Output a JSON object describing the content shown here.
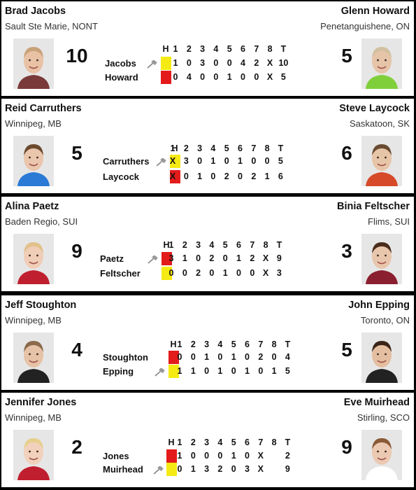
{
  "header_labels": [
    "H",
    "1",
    "2",
    "3",
    "4",
    "5",
    "6",
    "7",
    "8",
    "T"
  ],
  "colors": {
    "yellow": "#f5ea14",
    "red": "#e31b1b"
  },
  "games": [
    {
      "player1": {
        "name": "Brad Jacobs",
        "location": "Sault Ste Marie, NONT",
        "score": "10",
        "short": "Jacobs",
        "stone": "yellow",
        "hammer": true,
        "ends": [
          "1",
          "0",
          "3",
          "0",
          "0",
          "4",
          "2",
          "X"
        ],
        "total": "10"
      },
      "player2": {
        "name": "Glenn Howard",
        "location": "Penetanguishene, ON",
        "score": "5",
        "short": "Howard",
        "stone": "red",
        "hammer": false,
        "ends": [
          "0",
          "4",
          "0",
          "0",
          "1",
          "0",
          "0",
          "X"
        ],
        "total": "5"
      }
    },
    {
      "player1": {
        "name": "Reid Carruthers",
        "location": "Winnipeg, MB",
        "score": "5",
        "short": "Carruthers",
        "stone": "yellow",
        "hammer": true,
        "ends": [
          "X",
          "3",
          "0",
          "1",
          "0",
          "1",
          "0",
          "0"
        ],
        "total": "5"
      },
      "player2": {
        "name": "Steve Laycock",
        "location": "Saskatoon, SK",
        "score": "6",
        "short": "Laycock",
        "stone": "red",
        "hammer": false,
        "ends": [
          "X",
          "0",
          "1",
          "0",
          "2",
          "0",
          "2",
          "1"
        ],
        "total": "6"
      }
    },
    {
      "player1": {
        "name": "Alina Paetz",
        "location": "Baden Regio, SUI",
        "score": "9",
        "short": "Paetz",
        "stone": "red",
        "hammer": true,
        "ends": [
          "3",
          "1",
          "0",
          "2",
          "0",
          "1",
          "2",
          "X"
        ],
        "total": "9"
      },
      "player2": {
        "name": "Binia Feltscher",
        "location": "Flims, SUI",
        "score": "3",
        "short": "Feltscher",
        "stone": "yellow",
        "hammer": false,
        "ends": [
          "0",
          "0",
          "2",
          "0",
          "1",
          "0",
          "0",
          "X"
        ],
        "total": "3"
      }
    },
    {
      "player1": {
        "name": "Jeff Stoughton",
        "location": "Winnipeg, MB",
        "score": "4",
        "short": "Stoughton",
        "stone": "red",
        "hammer": false,
        "ends": [
          "0",
          "0",
          "1",
          "0",
          "1",
          "0",
          "2",
          "0"
        ],
        "total": "4"
      },
      "player2": {
        "name": "John Epping",
        "location": "Toronto, ON",
        "score": "5",
        "short": "Epping",
        "stone": "yellow",
        "hammer": true,
        "ends": [
          "1",
          "1",
          "0",
          "1",
          "0",
          "1",
          "0",
          "1"
        ],
        "total": "5"
      }
    },
    {
      "player1": {
        "name": "Jennifer Jones",
        "location": "Winnipeg, MB",
        "score": "2",
        "short": "Jones",
        "stone": "red",
        "hammer": false,
        "ends": [
          "1",
          "0",
          "0",
          "0",
          "1",
          "0",
          "X",
          ""
        ],
        "total": "2"
      },
      "player2": {
        "name": "Eve Muirhead",
        "location": "Stirling, SCO",
        "score": "9",
        "short": "Muirhead",
        "stone": "yellow",
        "hammer": true,
        "ends": [
          "0",
          "1",
          "3",
          "2",
          "0",
          "3",
          "X",
          ""
        ],
        "total": "9"
      }
    }
  ]
}
